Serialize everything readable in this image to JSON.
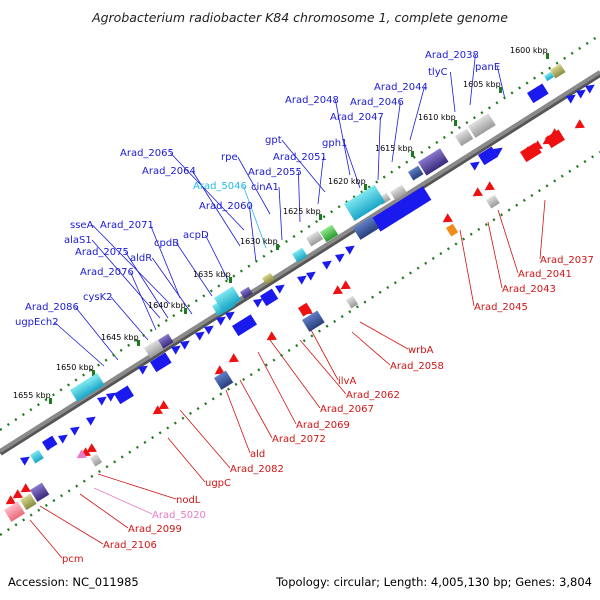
{
  "title": "Agrobacterium radiobacter K84 chromosome 1, complete genome",
  "footer": {
    "accession": "Accession: NC_011985",
    "summary": "Topology: circular; Length: 4,005,130 bp; Genes: 3,804"
  },
  "colors": {
    "forward_label": "#1a1ad6",
    "reverse_label": "#d21414",
    "pink_label": "#e87ac8",
    "cyan_label": "#25b8e8",
    "backbone": "#8a8a8a",
    "tick": "#1f7a1f"
  },
  "scale_ticks": [
    "1600 kbp",
    "1605 kbp",
    "1610 kbp",
    "1615 kbp",
    "1620 kbp",
    "1625 kbp",
    "1630 kbp",
    "1635 kbp",
    "1640 kbp",
    "1645 kbp",
    "1650 kbp",
    "1655 kbp"
  ],
  "forward_labels": [
    {
      "text": "panE",
      "color": "blue"
    },
    {
      "text": "Arad_2038",
      "color": "blue"
    },
    {
      "text": "tlyC",
      "color": "blue"
    },
    {
      "text": "Arad_2044",
      "color": "blue"
    },
    {
      "text": "Arad_2046",
      "color": "blue"
    },
    {
      "text": "Arad_2048",
      "color": "blue"
    },
    {
      "text": "Arad_2047",
      "color": "blue"
    },
    {
      "text": "gph1",
      "color": "blue"
    },
    {
      "text": "gpt",
      "color": "blue"
    },
    {
      "text": "Arad_2051",
      "color": "blue"
    },
    {
      "text": "rpe",
      "color": "blue"
    },
    {
      "text": "Arad_2055",
      "color": "blue"
    },
    {
      "text": "Arad_2065",
      "color": "blue"
    },
    {
      "text": "cinA1",
      "color": "blue"
    },
    {
      "text": "Arad_2064",
      "color": "blue"
    },
    {
      "text": "Arad_5046",
      "color": "cyan"
    },
    {
      "text": "Arad_2060",
      "color": "blue"
    },
    {
      "text": "acpD",
      "color": "blue"
    },
    {
      "text": "sseA",
      "color": "blue"
    },
    {
      "text": "Arad_2071",
      "color": "blue"
    },
    {
      "text": "alaS1",
      "color": "blue"
    },
    {
      "text": "cpdB",
      "color": "blue"
    },
    {
      "text": "Arad_2075",
      "color": "blue"
    },
    {
      "text": "aldR",
      "color": "blue"
    },
    {
      "text": "Arad_2076",
      "color": "blue"
    },
    {
      "text": "cysK2",
      "color": "blue"
    },
    {
      "text": "Arad_2086",
      "color": "blue"
    },
    {
      "text": "ugpEch2",
      "color": "blue"
    }
  ],
  "reverse_labels": [
    {
      "text": "Arad_2037",
      "color": "red"
    },
    {
      "text": "Arad_2041",
      "color": "red"
    },
    {
      "text": "Arad_2043",
      "color": "red"
    },
    {
      "text": "Arad_2045",
      "color": "red"
    },
    {
      "text": "wrbA",
      "color": "red"
    },
    {
      "text": "Arad_2058",
      "color": "red"
    },
    {
      "text": "ilvA",
      "color": "red"
    },
    {
      "text": "Arad_2062",
      "color": "red"
    },
    {
      "text": "Arad_2067",
      "color": "red"
    },
    {
      "text": "Arad_2069",
      "color": "red"
    },
    {
      "text": "Arad_2072",
      "color": "red"
    },
    {
      "text": "ald",
      "color": "red"
    },
    {
      "text": "Arad_2082",
      "color": "red"
    },
    {
      "text": "ugpC",
      "color": "red"
    },
    {
      "text": "nodL",
      "color": "red"
    },
    {
      "text": "Arad_5020",
      "color": "pink"
    },
    {
      "text": "Arad_2099",
      "color": "red"
    },
    {
      "text": "Arad_2106",
      "color": "red"
    },
    {
      "text": "pcm",
      "color": "red"
    }
  ]
}
